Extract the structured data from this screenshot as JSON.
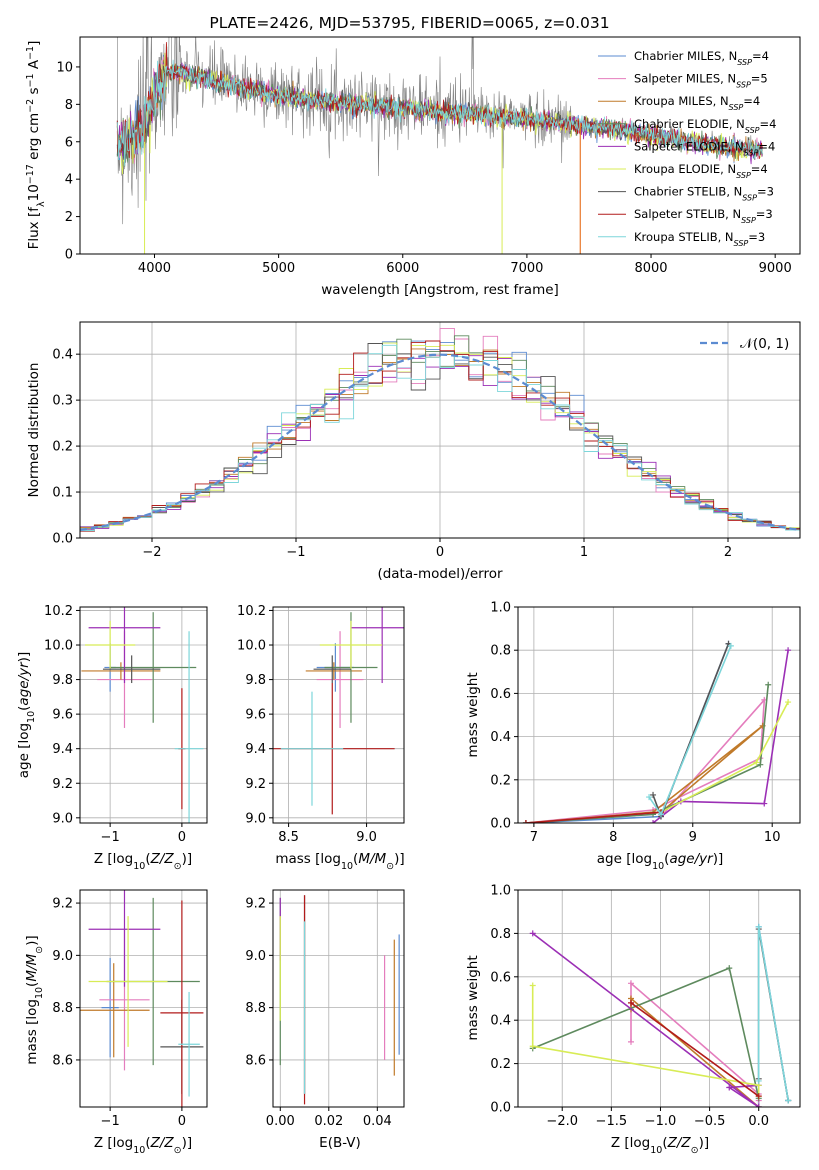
{
  "figure_title": "PLATE=2426, MJD=53795, FIBERID=0065, z=0.031",
  "colors": {
    "Chabrier MILES": "#5b8bd1",
    "Salpeter MILES": "#e47dbd",
    "Kroupa MILES": "#c07a2a",
    "Chabrier ELODIE": "#5e8a5e",
    "Salpeter ELODIE": "#9b2fb5",
    "Kroupa ELODIE": "#d8ec56",
    "Chabrier STELIB": "#555555",
    "Salpeter STELIB": "#b21b1b",
    "Kroupa STELIB": "#7dd6da",
    "spectrum": "#7f7f7f",
    "model_orange": "#e8782c",
    "normal_dashed": "#5b8bd1"
  },
  "chart_data": [
    {
      "id": "spectrum",
      "type": "line",
      "title": "PLATE=2426, MJD=53795, FIBERID=0065, z=0.031",
      "xlabel": "wavelength [Angstrom, rest frame]",
      "ylabel": "Flux [f",
      "ylabel_sub": "λ",
      "ylabel_mid": "10",
      "ylabel_sup1": "−17",
      "ylabel_tail": " erg cm",
      "ylabel_sup2": "−2",
      "ylabel_tail2": " s",
      "ylabel_sup3": "−1",
      "ylabel_tail3": " A",
      "ylabel_sup4": "−1",
      "ylabel_end": "]",
      "xlim": [
        3400,
        9200
      ],
      "ylim": [
        0,
        11.6
      ],
      "xticks": [
        "4000",
        "5000",
        "6000",
        "7000",
        "8000",
        "9000"
      ],
      "yticks": [
        "0",
        "2",
        "4",
        "6",
        "8",
        "10"
      ],
      "grid": false,
      "legend_position": "top-right",
      "legend": [
        {
          "name": "Chabrier MILES",
          "nssp": "4"
        },
        {
          "name": "Salpeter MILES",
          "nssp": "5"
        },
        {
          "name": "Kroupa MILES",
          "nssp": "4"
        },
        {
          "name": "Chabrier ELODIE",
          "nssp": "4"
        },
        {
          "name": "Salpeter ELODIE",
          "nssp": "4"
        },
        {
          "name": "Kroupa ELODIE",
          "nssp": "4"
        },
        {
          "name": "Chabrier STELIB",
          "nssp": "3"
        },
        {
          "name": "Salpeter STELIB",
          "nssp": "3"
        },
        {
          "name": "Kroupa STELIB",
          "nssp": "3"
        }
      ],
      "legend_suffix": "N",
      "legend_sub": "SSP",
      "continuum": {
        "x": [
          3700,
          3800,
          3900,
          4000,
          4100,
          4200,
          4400,
          4600,
          4800,
          5000,
          5200,
          5500,
          6000,
          6500,
          7000,
          7400,
          7800,
          8200,
          8600,
          9000
        ],
        "y": [
          6.0,
          6.2,
          6.8,
          8.6,
          9.9,
          9.8,
          9.5,
          9.1,
          8.9,
          8.6,
          8.4,
          8.2,
          7.9,
          7.6,
          7.3,
          7.0,
          6.7,
          6.2,
          5.8,
          5.6
        ]
      }
    },
    {
      "id": "residuals",
      "type": "line",
      "xlabel": "(data-model)/error",
      "ylabel": "Normed distribution",
      "xlim": [
        -2.5,
        2.5
      ],
      "ylim": [
        0,
        0.47
      ],
      "xticks": [
        "−2",
        "−1",
        "0",
        "1",
        "2"
      ],
      "yticks": [
        "0.0",
        "0.1",
        "0.2",
        "0.3",
        "0.4"
      ],
      "grid": true,
      "legend_position": "top-right",
      "legend_label": "𝒩(0, 1)"
    },
    {
      "id": "age_vs_Z",
      "type": "scatter",
      "xlabel": "Z [log",
      "xlabel_sub": "10",
      "xlabel_end": "(Z/Z",
      "xlabel_sun": "⊙",
      "xlabel_close": ")]",
      "ylabel": "age  [log",
      "ylabel_sub": "10",
      "ylabel_end": "(age/yr)]",
      "xlim": [
        -1.42,
        0.35
      ],
      "ylim": [
        8.97,
        10.22
      ],
      "xticks": [
        "−1",
        "0"
      ],
      "yticks": [
        "9.0",
        "9.2",
        "9.4",
        "9.6",
        "9.8",
        "10.0",
        "10.2"
      ],
      "grid": true,
      "points": [
        {
          "series": "Chabrier MILES",
          "x": -1.0,
          "y": 9.87,
          "xerr": 0.08,
          "yerr": 0.14
        },
        {
          "series": "Salpeter MILES",
          "x": -0.8,
          "y": 9.8,
          "xerr": 0.38,
          "yerr": 0.28
        },
        {
          "series": "Kroupa MILES",
          "x": -0.85,
          "y": 9.85,
          "xerr": 0.55,
          "yerr": 0.05
        },
        {
          "series": "Chabrier ELODIE",
          "x": -0.4,
          "y": 9.87,
          "xerr": 0.6,
          "yerr": 0.32
        },
        {
          "series": "Salpeter ELODIE",
          "x": -0.8,
          "y": 10.1,
          "xerr": 0.5,
          "yerr": 0.32
        },
        {
          "series": "Kroupa ELODIE",
          "x": -1.0,
          "y": 10.0,
          "xerr": 0.35,
          "yerr": 0.14
        },
        {
          "series": "Chabrier STELIB",
          "x": -0.7,
          "y": 9.86,
          "xerr": 0.4,
          "yerr": 0.08
        },
        {
          "series": "Salpeter STELIB",
          "x": 0.0,
          "y": 9.4,
          "xerr": 0.05,
          "yerr": 0.35
        },
        {
          "series": "Kroupa STELIB",
          "x": 0.1,
          "y": 9.4,
          "xerr": 0.2,
          "yerr": 0.68
        }
      ]
    },
    {
      "id": "age_vs_mass",
      "type": "scatter",
      "xlabel": "mass [log",
      "xlabel_sub": "10",
      "xlabel_end": "(M/M",
      "xlabel_sun": "⊙",
      "xlabel_close": ")]",
      "xlim": [
        8.4,
        9.24
      ],
      "ylim": [
        8.97,
        10.22
      ],
      "xticks": [
        "8.5",
        "9.0"
      ],
      "yticks": [
        "9.0",
        "9.2",
        "9.4",
        "9.6",
        "9.8",
        "10.0",
        "10.2"
      ],
      "grid": true,
      "points": [
        {
          "series": "Chabrier MILES",
          "x": 8.8,
          "y": 9.87,
          "xerr": 0.12,
          "yerr": 0.14
        },
        {
          "series": "Salpeter MILES",
          "x": 8.83,
          "y": 9.8,
          "xerr": 0.15,
          "yerr": 0.28
        },
        {
          "series": "Kroupa MILES",
          "x": 8.79,
          "y": 9.85,
          "xerr": 0.18,
          "yerr": 0.05
        },
        {
          "series": "Chabrier ELODIE",
          "x": 8.9,
          "y": 9.87,
          "xerr": 0.17,
          "yerr": 0.32
        },
        {
          "series": "Salpeter ELODIE",
          "x": 9.1,
          "y": 10.1,
          "xerr": 0.2,
          "yerr": 0.32
        },
        {
          "series": "Kroupa ELODIE",
          "x": 8.9,
          "y": 10.0,
          "xerr": 0.2,
          "yerr": 0.14
        },
        {
          "series": "Chabrier STELIB",
          "x": 8.78,
          "y": 9.86,
          "xerr": 0.12,
          "yerr": 0.08
        },
        {
          "series": "Salpeter STELIB",
          "x": 8.78,
          "y": 9.4,
          "xerr": 0.4,
          "yerr": 0.38
        },
        {
          "series": "Kroupa STELIB",
          "x": 8.65,
          "y": 9.4,
          "xerr": 0.2,
          "yerr": 0.33
        }
      ]
    },
    {
      "id": "mass_weight_vs_age",
      "type": "line",
      "xlabel": "age  [log",
      "xlabel_sub": "10",
      "xlabel_end": "(age/yr)]",
      "ylabel": "mass weight",
      "xlim": [
        6.8,
        10.35
      ],
      "ylim": [
        0,
        1
      ],
      "xticks": [
        "7",
        "8",
        "9",
        "10"
      ],
      "yticks": [
        "0.0",
        "0.2",
        "0.4",
        "0.6",
        "0.8",
        "1.0"
      ],
      "grid": true,
      "series": [
        {
          "name": "Chabrier MILES",
          "x": [
            6.9,
            8.6,
            9.45
          ],
          "y": [
            0.0,
            0.03,
            0.83
          ]
        },
        {
          "name": "Salpeter MILES",
          "x": [
            6.9,
            8.5,
            9.85,
            9.9,
            8.6
          ],
          "y": [
            0.0,
            0.06,
            0.3,
            0.57,
            0.03
          ]
        },
        {
          "name": "Kroupa MILES",
          "x": [
            6.9,
            8.5,
            9.88,
            8.6
          ],
          "y": [
            0.0,
            0.05,
            0.45,
            0.05
          ]
        },
        {
          "name": "Chabrier ELODIE",
          "x": [
            6.9,
            8.5,
            9.85,
            9.95
          ],
          "y": [
            0.0,
            0.04,
            0.27,
            0.64
          ]
        },
        {
          "name": "Salpeter ELODIE",
          "x": [
            8.5,
            8.85,
            9.9,
            10.2
          ],
          "y": [
            0.0,
            0.1,
            0.09,
            0.8
          ]
        },
        {
          "name": "Kroupa ELODIE",
          "x": [
            8.6,
            9.8,
            10.2
          ],
          "y": [
            0.05,
            0.28,
            0.56
          ]
        },
        {
          "name": "Chabrier STELIB",
          "x": [
            8.5,
            8.6,
            9.45
          ],
          "y": [
            0.13,
            0.03,
            0.83
          ]
        },
        {
          "name": "Salpeter STELIB",
          "x": [
            6.9,
            8.6
          ],
          "y": [
            0.0,
            0.05
          ]
        },
        {
          "name": "Kroupa STELIB",
          "x": [
            8.45,
            8.6,
            9.48
          ],
          "y": [
            0.12,
            0.04,
            0.82
          ]
        }
      ]
    },
    {
      "id": "mass_vs_Z",
      "type": "scatter",
      "xlabel": "Z [log",
      "xlabel_sub": "10",
      "xlabel_end": "(Z/Z",
      "xlabel_sun": "⊙",
      "xlabel_close": ")]",
      "ylabel": "mass [log",
      "ylabel_sub": "10",
      "ylabel_end": "(M/M",
      "ylabel_sun": "⊙",
      "ylabel_close": ")]",
      "xlim": [
        -1.42,
        0.35
      ],
      "ylim": [
        8.42,
        9.25
      ],
      "xticks": [
        "−1",
        "0"
      ],
      "yticks": [
        "8.6",
        "8.8",
        "9.0",
        "9.2"
      ],
      "grid": true,
      "points": [
        {
          "series": "Chabrier MILES",
          "x": -1.0,
          "y": 8.8,
          "xerr": 0.12,
          "yerr": 0.19
        },
        {
          "series": "Salpeter MILES",
          "x": -0.8,
          "y": 8.83,
          "xerr": 0.35,
          "yerr": 0.27
        },
        {
          "series": "Kroupa MILES",
          "x": -0.95,
          "y": 8.79,
          "xerr": 0.5,
          "yerr": 0.18
        },
        {
          "series": "Chabrier ELODIE",
          "x": -0.4,
          "y": 8.9,
          "xerr": 0.65,
          "yerr": 0.32
        },
        {
          "series": "Salpeter ELODIE",
          "x": -0.8,
          "y": 9.1,
          "xerr": 0.5,
          "yerr": 0.22
        },
        {
          "series": "Kroupa ELODIE",
          "x": -0.75,
          "y": 8.9,
          "xerr": 0.55,
          "yerr": 0.25
        },
        {
          "series": "Chabrier STELIB",
          "x": 0.0,
          "y": 8.65,
          "xerr": 0.3,
          "yerr": 0.18
        },
        {
          "series": "Salpeter STELIB",
          "x": 0.0,
          "y": 8.78,
          "xerr": 0.3,
          "yerr": 0.43
        },
        {
          "series": "Kroupa STELIB",
          "x": 0.1,
          "y": 8.66,
          "xerr": 0.15,
          "yerr": 0.2
        }
      ]
    },
    {
      "id": "mass_vs_EBV",
      "type": "scatter",
      "xlabel": "E(B-V)",
      "xlim": [
        -0.003,
        0.051
      ],
      "ylim": [
        8.42,
        9.25
      ],
      "xticks": [
        "0.00",
        "0.02",
        "0.04"
      ],
      "yticks": [
        "8.6",
        "8.8",
        "9.0",
        "9.2"
      ],
      "grid": true,
      "points": [
        {
          "series": "Chabrier MILES",
          "x": 0.049,
          "y": 8.85,
          "yerr": 0.23
        },
        {
          "series": "Salpeter MILES",
          "x": 0.043,
          "y": 8.8,
          "yerr": 0.2
        },
        {
          "series": "Kroupa MILES",
          "x": 0.047,
          "y": 8.8,
          "yerr": 0.26
        },
        {
          "series": "Chabrier ELODIE",
          "x": 0.0,
          "y": 8.9,
          "yerr": 0.32
        },
        {
          "series": "Salpeter ELODIE",
          "x": 0.0,
          "y": 9.1,
          "yerr": 0.12
        },
        {
          "series": "Kroupa ELODIE",
          "x": 0.0,
          "y": 8.95,
          "yerr": 0.2
        },
        {
          "series": "Chabrier STELIB",
          "x": 0.01,
          "y": 8.85,
          "yerr": 0.38
        },
        {
          "series": "Salpeter STELIB",
          "x": 0.01,
          "y": 8.83,
          "yerr": 0.4
        },
        {
          "series": "Kroupa STELIB",
          "x": 0.01,
          "y": 8.8,
          "yerr": 0.33
        }
      ]
    },
    {
      "id": "mass_weight_vs_Z",
      "type": "line",
      "xlabel": "Z [log",
      "xlabel_sub": "10",
      "xlabel_end": "(Z/Z",
      "xlabel_sun": "⊙",
      "xlabel_close": ")]",
      "ylabel": "mass weight",
      "xlim": [
        -2.45,
        0.42
      ],
      "ylim": [
        0,
        1
      ],
      "xticks": [
        "−2.0",
        "−1.5",
        "−1.0",
        "−0.5",
        "0.0"
      ],
      "yticks": [
        "0.0",
        "0.2",
        "0.4",
        "0.6",
        "0.8",
        "1.0"
      ],
      "grid": true,
      "series": [
        {
          "name": "Chabrier MILES",
          "x": [
            0.0,
            0.0,
            0.3
          ],
          "y": [
            0.0,
            0.83,
            0.03
          ]
        },
        {
          "name": "Salpeter MILES",
          "x": [
            -1.3,
            -1.3,
            0.0,
            0.0
          ],
          "y": [
            0.3,
            0.57,
            0.06,
            0.03
          ]
        },
        {
          "name": "Kroupa MILES",
          "x": [
            -1.3,
            -1.3,
            0.0
          ],
          "y": [
            0.45,
            0.5,
            0.0
          ]
        },
        {
          "name": "Chabrier ELODIE",
          "x": [
            -2.3,
            -0.3,
            0.0
          ],
          "y": [
            0.27,
            0.64,
            0.04
          ]
        },
        {
          "name": "Salpeter ELODIE",
          "x": [
            -2.3,
            0.0,
            -0.3,
            0.0
          ],
          "y": [
            0.8,
            0.0,
            0.09,
            0.1
          ]
        },
        {
          "name": "Kroupa ELODIE",
          "x": [
            -2.3,
            -2.3,
            0.0,
            0.0
          ],
          "y": [
            0.56,
            0.28,
            0.1,
            0.05
          ]
        },
        {
          "name": "Chabrier STELIB",
          "x": [
            0.0,
            0.0,
            0.3
          ],
          "y": [
            0.13,
            0.82,
            0.03
          ]
        },
        {
          "name": "Salpeter STELIB",
          "x": [
            -1.3,
            0.0
          ],
          "y": [
            0.48,
            0.05
          ]
        },
        {
          "name": "Kroupa STELIB",
          "x": [
            0.0,
            0.0,
            0.3
          ],
          "y": [
            0.12,
            0.83,
            0.03
          ]
        }
      ]
    }
  ]
}
